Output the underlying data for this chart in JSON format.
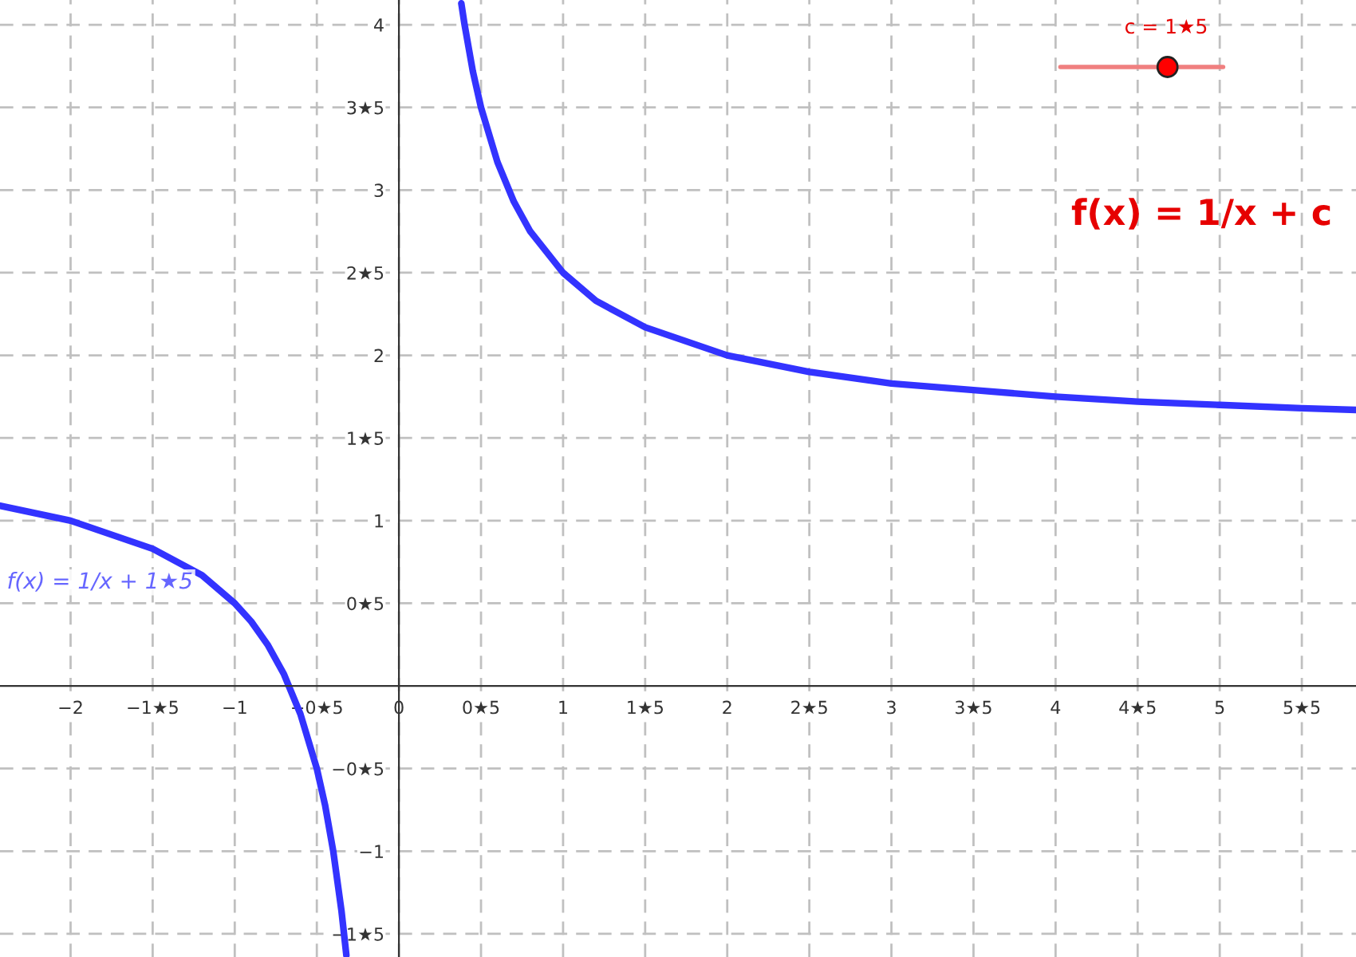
{
  "chart_data": {
    "type": "line",
    "xlim": [
      -2.43,
      5.83
    ],
    "ylim": [
      -1.64,
      4.15
    ],
    "xticks": [
      {
        "value": -2,
        "label": "−2"
      },
      {
        "value": -1.5,
        "label": "−1★5"
      },
      {
        "value": -1,
        "label": "−1"
      },
      {
        "value": -0.5,
        "label": "−0★5"
      },
      {
        "value": 0,
        "label": "0"
      },
      {
        "value": 0.5,
        "label": "0★5"
      },
      1,
      {
        "value": 1.5,
        "label": "1★5"
      },
      2,
      {
        "value": 2.5,
        "label": "2★5"
      },
      3,
      {
        "value": 3.5,
        "label": "3★5"
      },
      4,
      {
        "value": 4.5,
        "label": "4★5"
      },
      5,
      {
        "value": 5.5,
        "label": "5★5"
      }
    ],
    "yticks": [
      {
        "value": -1.5,
        "label": "−1★5"
      },
      {
        "value": -1,
        "label": "−1"
      },
      {
        "value": -0.5,
        "label": "−0★5"
      },
      {
        "value": 0.5,
        "label": "0★5"
      },
      1,
      {
        "value": 1.5,
        "label": "1★5"
      },
      2,
      {
        "value": 2.5,
        "label": "2★5"
      },
      3,
      {
        "value": 3.5,
        "label": "3★5"
      },
      4
    ],
    "grid": true,
    "marker": "none",
    "line_style": "solid",
    "series": [
      {
        "color": "#3333ff",
        "x": [
          -2.43,
          -2,
          -1.5,
          -1.2,
          -1,
          -0.9,
          -0.8,
          -0.7,
          -0.6,
          -0.5,
          -0.45,
          -0.4,
          -0.35,
          -0.32
        ],
        "values": [
          1.09,
          1,
          0.83,
          0.67,
          0.5,
          0.39,
          0.25,
          0.07,
          -0.17,
          -0.5,
          -0.72,
          -1,
          -1.36,
          -1.63
        ]
      },
      {
        "color": "#3333ff",
        "x": [
          0.38,
          0.4,
          0.45,
          0.5,
          0.6,
          0.7,
          0.8,
          1,
          1.2,
          1.5,
          2,
          2.5,
          3,
          3.5,
          4,
          4.5,
          5,
          5.5,
          5.83
        ],
        "values": [
          4.13,
          4,
          3.72,
          3.5,
          3.17,
          2.93,
          2.75,
          2.5,
          2.33,
          2.17,
          2,
          1.9,
          1.83,
          1.79,
          1.75,
          1.72,
          1.7,
          1.68,
          1.67
        ]
      }
    ],
    "annotations": [
      "f(x) = 1/x + 1★5",
      "c = 1★5",
      "f(x) = 1/x + c"
    ]
  }
}
